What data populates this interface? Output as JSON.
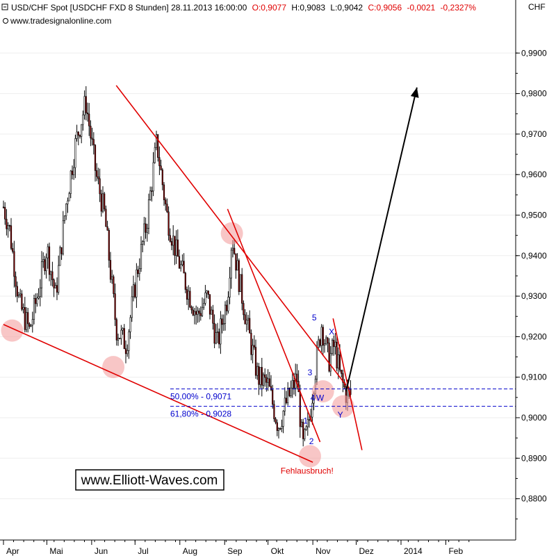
{
  "header": {
    "title": "USD/CHF Spot [USDCHF FXD  8 Stunden] 28.11.2013 16:00:00",
    "open": "O:0,9077",
    "high": "H:0,9083",
    "low": "L:0,9042",
    "close": "C:0,9056",
    "change": "-0,0021",
    "change_pct": "-0,2327%",
    "source": "www.tradesignalonline.com",
    "currency": "CHF"
  },
  "colors": {
    "negative": "#e00000",
    "annotation_red": "#e00000",
    "fib_blue": "#0000cc",
    "candle": "#000000",
    "highlight": "#f4a0a0"
  },
  "chart_data": {
    "type": "candlestick",
    "title": "USD/CHF Spot [USDCHF FXD  8 Stunden] 28.11.2013 16:00:00",
    "xlabel": "",
    "ylabel": "CHF",
    "ylim": [
      0.872,
      0.997
    ],
    "y_ticks": [
      "0,8800",
      "0,8900",
      "0,9000",
      "0,9100",
      "0,9200",
      "0,9300",
      "0,9400",
      "0,9500",
      "0,9600",
      "0,9700",
      "0,9800",
      "0,9900"
    ],
    "x_ticks": [
      "Apr",
      "Mai",
      "Jun",
      "Jul",
      "Aug",
      "Sep",
      "Okt",
      "Nov",
      "Dez",
      "2014",
      "Feb"
    ],
    "price_path": [
      {
        "x": "2013-04-01",
        "y": 0.952
      },
      {
        "x": "2013-04-05",
        "y": 0.947
      },
      {
        "x": "2013-04-12",
        "y": 0.928
      },
      {
        "x": "2013-04-19",
        "y": 0.9215
      },
      {
        "x": "2013-04-25",
        "y": 0.931
      },
      {
        "x": "2013-05-01",
        "y": 0.942
      },
      {
        "x": "2013-05-07",
        "y": 0.93
      },
      {
        "x": "2013-05-14",
        "y": 0.952
      },
      {
        "x": "2013-05-21",
        "y": 0.968
      },
      {
        "x": "2013-05-28",
        "y": 0.978
      },
      {
        "x": "2013-06-04",
        "y": 0.96
      },
      {
        "x": "2013-06-10",
        "y": 0.95
      },
      {
        "x": "2013-06-18",
        "y": 0.922
      },
      {
        "x": "2013-06-25",
        "y": 0.918
      },
      {
        "x": "2013-07-02",
        "y": 0.935
      },
      {
        "x": "2013-07-09",
        "y": 0.948
      },
      {
        "x": "2013-07-16",
        "y": 0.968
      },
      {
        "x": "2013-07-23",
        "y": 0.95
      },
      {
        "x": "2013-07-30",
        "y": 0.94
      },
      {
        "x": "2013-08-06",
        "y": 0.932
      },
      {
        "x": "2013-08-13",
        "y": 0.925
      },
      {
        "x": "2013-08-20",
        "y": 0.93
      },
      {
        "x": "2013-08-27",
        "y": 0.918
      },
      {
        "x": "2013-09-03",
        "y": 0.93
      },
      {
        "x": "2013-09-06",
        "y": 0.945
      },
      {
        "x": "2013-09-10",
        "y": 0.936
      },
      {
        "x": "2013-09-17",
        "y": 0.922
      },
      {
        "x": "2013-09-24",
        "y": 0.91
      },
      {
        "x": "2013-10-01",
        "y": 0.908
      },
      {
        "x": "2013-10-08",
        "y": 0.898
      },
      {
        "x": "2013-10-14",
        "y": 0.904
      },
      {
        "x": "2013-10-21",
        "y": 0.91
      },
      {
        "x": "2013-10-25",
        "y": 0.8925
      },
      {
        "x": "2013-10-29",
        "y": 0.898
      },
      {
        "x": "2013-11-02",
        "y": 0.91
      },
      {
        "x": "2013-11-07",
        "y": 0.923
      },
      {
        "x": "2013-11-12",
        "y": 0.914
      },
      {
        "x": "2013-11-16",
        "y": 0.918
      },
      {
        "x": "2013-11-20",
        "y": 0.91
      },
      {
        "x": "2013-11-24",
        "y": 0.906
      },
      {
        "x": "2013-11-28",
        "y": 0.9056
      }
    ],
    "trendlines": [
      {
        "name": "lower-support",
        "from": {
          "x": "2013-04-01",
          "y": 0.923
        },
        "to": {
          "x": "2013-11-01",
          "y": 0.889
        }
      },
      {
        "name": "upper-resistance",
        "from": {
          "x": "2013-06-18",
          "y": 0.982
        },
        "to": {
          "x": "2013-11-24",
          "y": 0.908
        }
      },
      {
        "name": "steep-line-1",
        "from": {
          "x": "2013-09-03",
          "y": 0.9515
        },
        "to": {
          "x": "2013-11-06",
          "y": 0.894
        }
      },
      {
        "name": "steep-line-2",
        "from": {
          "x": "2013-11-15",
          "y": 0.9245
        },
        "to": {
          "x": "2013-12-05",
          "y": 0.892
        }
      }
    ],
    "fib_levels": [
      {
        "label": "50,00% - 0,9071",
        "y": 0.9071
      },
      {
        "label": "61,80% - 0,9028",
        "y": 0.9028
      }
    ],
    "wave_labels": [
      {
        "label": "1",
        "x": "2013-10-27",
        "y": 0.8985
      },
      {
        "label": "2",
        "x": "2013-10-31",
        "y": 0.8935
      },
      {
        "label": "3",
        "x": "2013-10-30",
        "y": 0.9105
      },
      {
        "label": "4",
        "x": "2013-11-01",
        "y": 0.9042
      },
      {
        "label": "5",
        "x": "2013-11-02",
        "y": 0.924
      },
      {
        "label": "W",
        "x": "2013-11-06",
        "y": 0.9042
      },
      {
        "label": "X",
        "x": "2013-11-14",
        "y": 0.9205
      },
      {
        "label": "Y",
        "x": "2013-11-20",
        "y": 0.9
      }
    ],
    "highlights": [
      {
        "x": "2013-04-07",
        "y": 0.9215
      },
      {
        "x": "2013-06-16",
        "y": 0.9125
      },
      {
        "x": "2013-09-06",
        "y": 0.9455
      },
      {
        "x": "2013-10-30",
        "y": 0.8905
      },
      {
        "x": "2013-11-08",
        "y": 0.9065
      },
      {
        "x": "2013-11-22",
        "y": 0.9028
      }
    ],
    "projection_arrow": {
      "from": {
        "x": "2013-11-24",
        "y": 0.9065
      },
      "to": {
        "x": "2014-01-12",
        "y": 0.9815
      }
    },
    "annotations": [
      {
        "text": "Fehlausbruch!",
        "x": "2013-10-28",
        "y": 0.8862
      }
    ]
  },
  "watermark": "www.Elliott-Waves.com"
}
